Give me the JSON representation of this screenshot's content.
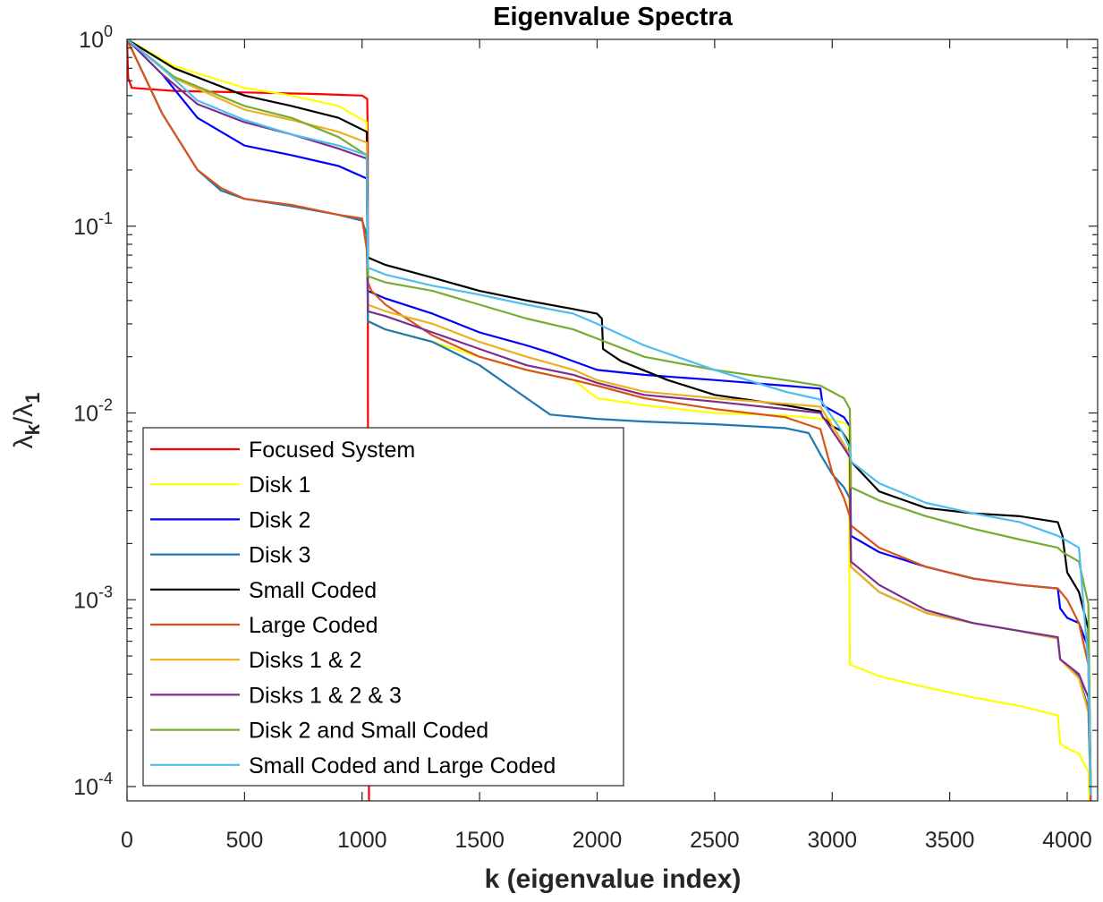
{
  "chart_data": {
    "type": "line",
    "title": "Eigenvalue Spectra",
    "xlabel": "k (eigenvalue index)",
    "ylabel": {
      "main": "λ",
      "sub1": "k",
      "slash": "/λ",
      "sub2": "1"
    },
    "xlim": [
      0,
      4200
    ],
    "ylim": [
      9e-05,
      1.05
    ],
    "yscale": "log",
    "grid": false,
    "legend_position": "bottom-left",
    "x_ticks": [
      0,
      500,
      1000,
      1500,
      2000,
      2500,
      3000,
      3500,
      4000
    ],
    "x_tick_labels": [
      "0",
      "500",
      "1000",
      "1500",
      "2000",
      "2500",
      "3000",
      "3500",
      "4000"
    ],
    "y_ticks": [
      0.0001,
      0.001,
      0.01,
      0.1,
      1
    ],
    "y_tick_labels": [
      {
        "base": "10",
        "exp": "-4"
      },
      {
        "base": "10",
        "exp": "-3"
      },
      {
        "base": "10",
        "exp": "-2"
      },
      {
        "base": "10",
        "exp": "-1"
      },
      {
        "base": "10",
        "exp": "0"
      }
    ],
    "series": [
      {
        "name": "Focused System",
        "color": "#ff0000",
        "x": [
          0,
          5,
          20,
          200,
          500,
          800,
          1000,
          1022,
          1024,
          1025,
          1030
        ],
        "y": [
          1,
          0.62,
          0.55,
          0.53,
          0.52,
          0.51,
          0.5,
          0.48,
          0.3,
          0.01,
          5e-05
        ]
      },
      {
        "name": "Disk 1",
        "color": "#ffff00",
        "x": [
          0,
          200,
          500,
          700,
          900,
          1020,
          1025,
          1100,
          1300,
          1500,
          1700,
          1900,
          2000,
          2200,
          2500,
          2800,
          3000,
          3070,
          3075,
          3200,
          3400,
          3600,
          3800,
          3960,
          3970,
          4000,
          4050,
          4090,
          4100
        ],
        "y": [
          1,
          0.72,
          0.55,
          0.5,
          0.44,
          0.36,
          0.031,
          0.028,
          0.024,
          0.02,
          0.017,
          0.015,
          0.012,
          0.011,
          0.01,
          0.0097,
          0.0092,
          0.0087,
          0.00045,
          0.00039,
          0.00034,
          0.0003,
          0.00027,
          0.00024,
          0.00017,
          0.00016,
          0.00015,
          0.00012,
          6e-05
        ]
      },
      {
        "name": "Disk 2",
        "color": "#0000ff",
        "x": [
          0,
          150,
          300,
          500,
          700,
          900,
          1020,
          1025,
          1100,
          1300,
          1500,
          1700,
          1800,
          2000,
          2200,
          2500,
          2800,
          2950,
          2960,
          3050,
          3075,
          3080,
          3200,
          3400,
          3600,
          3800,
          3960,
          3970,
          4000,
          4050,
          4090,
          4100
        ],
        "y": [
          1,
          0.65,
          0.38,
          0.27,
          0.24,
          0.21,
          0.18,
          0.045,
          0.041,
          0.034,
          0.027,
          0.023,
          0.021,
          0.017,
          0.016,
          0.015,
          0.014,
          0.0135,
          0.011,
          0.0095,
          0.0085,
          0.0022,
          0.0018,
          0.0015,
          0.0013,
          0.0012,
          0.00115,
          0.0009,
          0.0008,
          0.00075,
          0.00055,
          8e-05
        ]
      },
      {
        "name": "Disk 3",
        "color": "#1f78b4",
        "x": [
          0,
          150,
          300,
          400,
          500,
          700,
          900,
          1000,
          1020,
          1025,
          1100,
          1300,
          1500,
          1700,
          1800,
          2000,
          2200,
          2500,
          2800,
          2900,
          2950,
          3000,
          3050,
          3075,
          3080,
          3200,
          3400,
          3600,
          3800,
          3960,
          3970,
          4050,
          4090,
          4100
        ],
        "y": [
          1,
          0.4,
          0.2,
          0.155,
          0.14,
          0.128,
          0.115,
          0.107,
          0.09,
          0.031,
          0.028,
          0.024,
          0.018,
          0.012,
          0.0098,
          0.0093,
          0.009,
          0.0087,
          0.0083,
          0.0078,
          0.006,
          0.0047,
          0.004,
          0.0035,
          0.0015,
          0.0011,
          0.00085,
          0.00075,
          0.00068,
          0.00062,
          0.00048,
          0.00039,
          0.00026,
          9e-05
        ]
      },
      {
        "name": "Small Coded",
        "color": "#000000",
        "x": [
          0,
          200,
          500,
          700,
          900,
          1020,
          1025,
          1100,
          1300,
          1500,
          1700,
          1900,
          2000,
          2020,
          2025,
          2100,
          2300,
          2500,
          2800,
          2950,
          2960,
          3000,
          3040,
          3070,
          3080,
          3200,
          3400,
          3600,
          3800,
          3960,
          3980,
          4000,
          4050,
          4090,
          4100
        ],
        "y": [
          1,
          0.7,
          0.5,
          0.44,
          0.38,
          0.32,
          0.068,
          0.062,
          0.053,
          0.045,
          0.04,
          0.036,
          0.034,
          0.032,
          0.022,
          0.019,
          0.015,
          0.0125,
          0.011,
          0.0102,
          0.0095,
          0.0085,
          0.008,
          0.007,
          0.0055,
          0.0038,
          0.0031,
          0.0029,
          0.0028,
          0.0026,
          0.0022,
          0.0014,
          0.0011,
          0.0007,
          0.0001
        ]
      },
      {
        "name": "Large Coded",
        "color": "#d95319",
        "x": [
          0,
          150,
          300,
          400,
          500,
          700,
          900,
          1000,
          1020,
          1025,
          1040,
          1100,
          1300,
          1500,
          1700,
          1900,
          2000,
          2200,
          2500,
          2800,
          2950,
          3000,
          3050,
          3075,
          3080,
          3200,
          3400,
          3600,
          3800,
          3960,
          4000,
          4050,
          4090,
          4100
        ],
        "y": [
          1,
          0.4,
          0.2,
          0.16,
          0.14,
          0.13,
          0.115,
          0.11,
          0.075,
          0.05,
          0.045,
          0.038,
          0.026,
          0.02,
          0.017,
          0.015,
          0.014,
          0.012,
          0.0105,
          0.0095,
          0.0082,
          0.0048,
          0.0035,
          0.0028,
          0.0025,
          0.0019,
          0.0015,
          0.0013,
          0.0012,
          0.00115,
          0.001,
          0.00075,
          0.00045,
          8e-05
        ]
      },
      {
        "name": "Disks 1 & 2",
        "color": "#edb120",
        "x": [
          0,
          200,
          500,
          700,
          900,
          1020,
          1025,
          1100,
          1300,
          1500,
          1700,
          1900,
          2000,
          2200,
          2500,
          2800,
          2950,
          3050,
          3075,
          3080,
          3200,
          3400,
          3600,
          3800,
          3960,
          3970,
          4050,
          4090,
          4100
        ],
        "y": [
          1,
          0.62,
          0.42,
          0.37,
          0.32,
          0.28,
          0.038,
          0.035,
          0.03,
          0.024,
          0.02,
          0.017,
          0.015,
          0.013,
          0.012,
          0.0112,
          0.0108,
          0.0068,
          0.006,
          0.0015,
          0.0011,
          0.00085,
          0.00075,
          0.00068,
          0.00062,
          0.00048,
          0.00038,
          0.00025,
          9e-05
        ]
      },
      {
        "name": "Disks 1 & 2 & 3",
        "color": "#7e2f8e",
        "x": [
          0,
          150,
          300,
          500,
          700,
          900,
          1020,
          1025,
          1100,
          1300,
          1500,
          1700,
          1900,
          2000,
          2200,
          2500,
          2800,
          2950,
          3050,
          3075,
          3080,
          3200,
          3400,
          3600,
          3800,
          3960,
          3970,
          4050,
          4090,
          4100
        ],
        "y": [
          1,
          0.65,
          0.45,
          0.36,
          0.31,
          0.26,
          0.23,
          0.035,
          0.033,
          0.027,
          0.022,
          0.018,
          0.016,
          0.0145,
          0.0125,
          0.0115,
          0.0105,
          0.01,
          0.0065,
          0.0058,
          0.0016,
          0.0012,
          0.00088,
          0.00075,
          0.00068,
          0.00063,
          0.00048,
          0.0004,
          0.0003,
          9e-05
        ]
      },
      {
        "name": "Disk 2 and Small Coded",
        "color": "#77ac30",
        "x": [
          0,
          200,
          500,
          700,
          900,
          1020,
          1025,
          1100,
          1300,
          1500,
          1700,
          1900,
          2000,
          2200,
          2500,
          2800,
          2950,
          3050,
          3075,
          3080,
          3200,
          3400,
          3600,
          3800,
          3960,
          3980,
          4050,
          4090,
          4100
        ],
        "y": [
          1,
          0.63,
          0.44,
          0.38,
          0.3,
          0.24,
          0.054,
          0.05,
          0.045,
          0.038,
          0.032,
          0.028,
          0.025,
          0.02,
          0.017,
          0.015,
          0.014,
          0.012,
          0.0105,
          0.004,
          0.0034,
          0.0028,
          0.0024,
          0.0021,
          0.0019,
          0.0018,
          0.0016,
          0.00095,
          0.0001
        ]
      },
      {
        "name": "Small Coded and Large Coded",
        "color": "#4dbeee",
        "x": [
          0,
          150,
          300,
          500,
          700,
          900,
          1020,
          1025,
          1100,
          1300,
          1500,
          1700,
          1900,
          2000,
          2200,
          2500,
          2800,
          2950,
          3000,
          3040,
          3075,
          3080,
          3200,
          3400,
          3600,
          3800,
          3960,
          3990,
          4050,
          4090,
          4100
        ],
        "y": [
          1,
          0.7,
          0.47,
          0.37,
          0.31,
          0.27,
          0.24,
          0.06,
          0.055,
          0.048,
          0.043,
          0.038,
          0.034,
          0.03,
          0.023,
          0.017,
          0.013,
          0.0118,
          0.0095,
          0.008,
          0.0065,
          0.0055,
          0.0042,
          0.0033,
          0.0029,
          0.0026,
          0.0022,
          0.0021,
          0.0019,
          0.00045,
          9e-05
        ]
      }
    ]
  }
}
